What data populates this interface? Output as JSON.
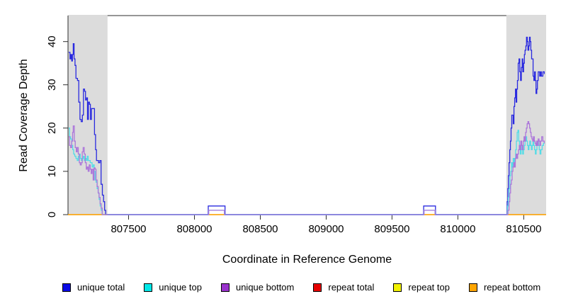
{
  "chart_data": {
    "type": "line",
    "title": "",
    "xlabel": "Coordinate in Reference Genome",
    "ylabel": "Read Coverage Depth",
    "xlim": [
      807040,
      810670
    ],
    "ylim": [
      0,
      46
    ],
    "x_ticks": [
      807500,
      808000,
      808500,
      809000,
      809500,
      810000,
      810500
    ],
    "y_ticks": [
      0,
      10,
      20,
      30,
      40
    ],
    "grid": false,
    "legend_position": "bottom",
    "highlight_regions": {
      "color": "#DCDCDC",
      "ranges": [
        [
          807040,
          807340
        ],
        [
          810368,
          810670
        ]
      ]
    },
    "zero_overlay": {
      "color": "#8480EE",
      "segments": [
        [
          807340,
          808105
        ],
        [
          808232,
          809740
        ],
        [
          809830,
          810368
        ]
      ]
    },
    "series": [
      {
        "name": "repeat total",
        "line_color": "#E60000",
        "legend_color": "#E60000",
        "points": [
          [
            807040,
            0
          ],
          [
            810670,
            0
          ]
        ]
      },
      {
        "name": "repeat top",
        "line_color": "#F2F200",
        "legend_color": "#F2F200",
        "points": [
          [
            807040,
            0
          ],
          [
            810670,
            0
          ]
        ]
      },
      {
        "name": "repeat bottom",
        "line_color": "#FFA500",
        "legend_color": "#FFA500",
        "points": [
          [
            807040,
            0
          ],
          [
            810670,
            0
          ]
        ]
      },
      {
        "name": "unique total",
        "line_color": "#2A2ADF",
        "legend_color": "#0A0AE6",
        "points": [
          [
            807045,
            37.5
          ],
          [
            807055,
            36
          ],
          [
            807062,
            37
          ],
          [
            807068,
            35.5
          ],
          [
            807074,
            37
          ],
          [
            807080,
            39.5
          ],
          [
            807086,
            36
          ],
          [
            807093,
            34.5
          ],
          [
            807100,
            31.5
          ],
          [
            807112,
            31
          ],
          [
            807122,
            26
          ],
          [
            807131,
            22
          ],
          [
            807140,
            21.5
          ],
          [
            807149,
            23
          ],
          [
            807157,
            29
          ],
          [
            807166,
            28.5
          ],
          [
            807173,
            26.5
          ],
          [
            807181,
            27
          ],
          [
            807188,
            22
          ],
          [
            807195,
            26
          ],
          [
            807203,
            25.5
          ],
          [
            807210,
            22
          ],
          [
            807218,
            24.5
          ],
          [
            807233,
            24.5
          ],
          [
            807241,
            18.5
          ],
          [
            807249,
            15
          ],
          [
            807256,
            12.5
          ],
          [
            807272,
            12
          ],
          [
            807282,
            12.5
          ],
          [
            807291,
            7
          ],
          [
            807301,
            4.5
          ],
          [
            807310,
            3
          ],
          [
            807318,
            1
          ],
          [
            807326,
            0
          ],
          [
            808105,
            0
          ],
          [
            808105,
            2
          ],
          [
            808232,
            2
          ],
          [
            808232,
            0
          ],
          [
            809740,
            0
          ],
          [
            809740,
            2
          ],
          [
            809830,
            2
          ],
          [
            809830,
            0
          ],
          [
            810368,
            0
          ],
          [
            810374,
            3
          ],
          [
            810379,
            6
          ],
          [
            810384,
            9
          ],
          [
            810389,
            12
          ],
          [
            810394,
            15
          ],
          [
            810399,
            17
          ],
          [
            810404,
            20
          ],
          [
            810409,
            23
          ],
          [
            810415,
            23
          ],
          [
            810420,
            21
          ],
          [
            810426,
            25
          ],
          [
            810431,
            27
          ],
          [
            810437,
            29
          ],
          [
            810442,
            26
          ],
          [
            810447,
            29
          ],
          [
            810452,
            31
          ],
          [
            810458,
            35
          ],
          [
            810464,
            36
          ],
          [
            810470,
            33
          ],
          [
            810476,
            31
          ],
          [
            810482,
            34
          ],
          [
            810488,
            36
          ],
          [
            810493,
            33
          ],
          [
            810499,
            35
          ],
          [
            810505,
            37
          ],
          [
            810510,
            38
          ],
          [
            810516,
            39
          ],
          [
            810521,
            41
          ],
          [
            810527,
            40
          ],
          [
            810532,
            38
          ],
          [
            810538,
            39
          ],
          [
            810543,
            41
          ],
          [
            810549,
            40
          ],
          [
            810554,
            38
          ],
          [
            810560,
            36
          ],
          [
            810566,
            36
          ],
          [
            810571,
            32
          ],
          [
            810577,
            31
          ],
          [
            810582,
            33
          ],
          [
            810588,
            31
          ],
          [
            810593,
            28
          ],
          [
            810599,
            29
          ],
          [
            810604,
            31
          ],
          [
            810610,
            33
          ],
          [
            810615,
            33
          ],
          [
            810621,
            32
          ],
          [
            810627,
            33
          ],
          [
            810634,
            32
          ],
          [
            810645,
            33
          ],
          [
            810656,
            32.5
          ]
        ]
      },
      {
        "name": "unique top",
        "line_color": "#55DCE6",
        "legend_color": "#00E8E8",
        "points": [
          [
            807045,
            20
          ],
          [
            807052,
            18
          ],
          [
            807060,
            17.5
          ],
          [
            807068,
            16
          ],
          [
            807076,
            15
          ],
          [
            807083,
            14
          ],
          [
            807091,
            13.5
          ],
          [
            807100,
            13
          ],
          [
            807110,
            12.5
          ],
          [
            807118,
            13.5
          ],
          [
            807126,
            14
          ],
          [
            807133,
            13
          ],
          [
            807141,
            12.5
          ],
          [
            807149,
            13
          ],
          [
            807156,
            13.5
          ],
          [
            807163,
            12.5
          ],
          [
            807171,
            13
          ],
          [
            807179,
            12.5
          ],
          [
            807186,
            13.5
          ],
          [
            807193,
            12.5
          ],
          [
            807201,
            12.5
          ],
          [
            807209,
            12
          ],
          [
            807216,
            12
          ],
          [
            807223,
            11
          ],
          [
            807231,
            11.5
          ],
          [
            807239,
            10
          ],
          [
            807246,
            8
          ],
          [
            807253,
            7.5
          ],
          [
            807261,
            6
          ],
          [
            807269,
            5
          ],
          [
            807276,
            3.5
          ],
          [
            807284,
            2
          ],
          [
            807292,
            1
          ],
          [
            807300,
            0
          ],
          [
            808108,
            0
          ],
          [
            808108,
            1
          ],
          [
            808228,
            1
          ],
          [
            808228,
            0
          ],
          [
            809743,
            0
          ],
          [
            809743,
            1
          ],
          [
            809827,
            1
          ],
          [
            809827,
            0
          ],
          [
            810368,
            0
          ],
          [
            810377,
            2
          ],
          [
            810383,
            4
          ],
          [
            810389,
            6
          ],
          [
            810395,
            9
          ],
          [
            810401,
            10
          ],
          [
            810407,
            12
          ],
          [
            810414,
            11
          ],
          [
            810420,
            13
          ],
          [
            810426,
            12
          ],
          [
            810432,
            13
          ],
          [
            810438,
            15
          ],
          [
            810444,
            17
          ],
          [
            810450,
            19
          ],
          [
            810456,
            19.5
          ],
          [
            810462,
            17
          ],
          [
            810468,
            15
          ],
          [
            810474,
            14
          ],
          [
            810480,
            15
          ],
          [
            810486,
            16
          ],
          [
            810492,
            14
          ],
          [
            810498,
            15
          ],
          [
            810504,
            16
          ],
          [
            810510,
            17
          ],
          [
            810516,
            18
          ],
          [
            810522,
            17
          ],
          [
            810528,
            16
          ],
          [
            810534,
            15
          ],
          [
            810540,
            16
          ],
          [
            810546,
            17
          ],
          [
            810552,
            16
          ],
          [
            810558,
            15
          ],
          [
            810564,
            16
          ],
          [
            810570,
            17
          ],
          [
            810576,
            16
          ],
          [
            810582,
            15
          ],
          [
            810588,
            14
          ],
          [
            810594,
            15
          ],
          [
            810600,
            16
          ],
          [
            810606,
            17
          ],
          [
            810612,
            16
          ],
          [
            810618,
            15
          ],
          [
            810624,
            14
          ],
          [
            810630,
            15
          ],
          [
            810640,
            16
          ],
          [
            810650,
            16.5
          ],
          [
            810660,
            16.5
          ]
        ]
      },
      {
        "name": "unique bottom",
        "line_color": "#AC77DA",
        "legend_color": "#9932CC",
        "points": [
          [
            807045,
            18
          ],
          [
            807052,
            16
          ],
          [
            807060,
            15.5
          ],
          [
            807068,
            17
          ],
          [
            807075,
            19
          ],
          [
            807080,
            20.5
          ],
          [
            807088,
            17
          ],
          [
            807095,
            15.5
          ],
          [
            807103,
            14.5
          ],
          [
            807110,
            15.5
          ],
          [
            807118,
            14
          ],
          [
            807126,
            12
          ],
          [
            807133,
            11.5
          ],
          [
            807141,
            12
          ],
          [
            807148,
            14.5
          ],
          [
            807155,
            15.5
          ],
          [
            807163,
            14
          ],
          [
            807171,
            12
          ],
          [
            807179,
            10.5
          ],
          [
            807186,
            11
          ],
          [
            807193,
            10
          ],
          [
            807201,
            11.5
          ],
          [
            807209,
            10.5
          ],
          [
            807216,
            9.5
          ],
          [
            807223,
            10.5
          ],
          [
            807231,
            8
          ],
          [
            807238,
            10.8
          ],
          [
            807246,
            10.5
          ],
          [
            807253,
            8
          ],
          [
            807261,
            6.5
          ],
          [
            807269,
            5
          ],
          [
            807276,
            4
          ],
          [
            807284,
            2.5
          ],
          [
            807292,
            1.5
          ],
          [
            807300,
            0
          ],
          [
            808108,
            0
          ],
          [
            808108,
            1
          ],
          [
            808228,
            1
          ],
          [
            808228,
            0
          ],
          [
            809743,
            0
          ],
          [
            809743,
            1
          ],
          [
            809827,
            1
          ],
          [
            809827,
            0
          ],
          [
            810368,
            0
          ],
          [
            810380,
            1
          ],
          [
            810388,
            3
          ],
          [
            810394,
            5
          ],
          [
            810400,
            7
          ],
          [
            810406,
            8
          ],
          [
            810412,
            10
          ],
          [
            810418,
            11
          ],
          [
            810424,
            12
          ],
          [
            810430,
            11
          ],
          [
            810436,
            13
          ],
          [
            810442,
            14
          ],
          [
            810448,
            13
          ],
          [
            810454,
            14
          ],
          [
            810460,
            15
          ],
          [
            810466,
            16
          ],
          [
            810472,
            15
          ],
          [
            810478,
            17
          ],
          [
            810484,
            16
          ],
          [
            810490,
            15
          ],
          [
            810496,
            17
          ],
          [
            810502,
            18
          ],
          [
            810508,
            17
          ],
          [
            810514,
            19
          ],
          [
            810520,
            20
          ],
          [
            810526,
            21
          ],
          [
            810532,
            21.5
          ],
          [
            810538,
            21
          ],
          [
            810544,
            20
          ],
          [
            810550,
            19
          ],
          [
            810556,
            18
          ],
          [
            810562,
            17.5
          ],
          [
            810568,
            17
          ],
          [
            810574,
            18
          ],
          [
            810580,
            17
          ],
          [
            810586,
            16.5
          ],
          [
            810592,
            16
          ],
          [
            810598,
            17
          ],
          [
            810604,
            16
          ],
          [
            810610,
            17.5
          ],
          [
            810616,
            17
          ],
          [
            810622,
            16
          ],
          [
            810628,
            17
          ],
          [
            810636,
            18
          ],
          [
            810645,
            17
          ],
          [
            810656,
            16.5
          ]
        ]
      }
    ],
    "legend": [
      {
        "label": "unique total",
        "color": "#0A0AE6"
      },
      {
        "label": "unique top",
        "color": "#00E8E8"
      },
      {
        "label": "unique bottom",
        "color": "#9932CC"
      },
      {
        "label": "repeat total",
        "color": "#E60000"
      },
      {
        "label": "repeat top",
        "color": "#F2F200"
      },
      {
        "label": "repeat bottom",
        "color": "#FFA500"
      }
    ],
    "axis_color": "#2E2E2E",
    "text_color": "#000000"
  }
}
